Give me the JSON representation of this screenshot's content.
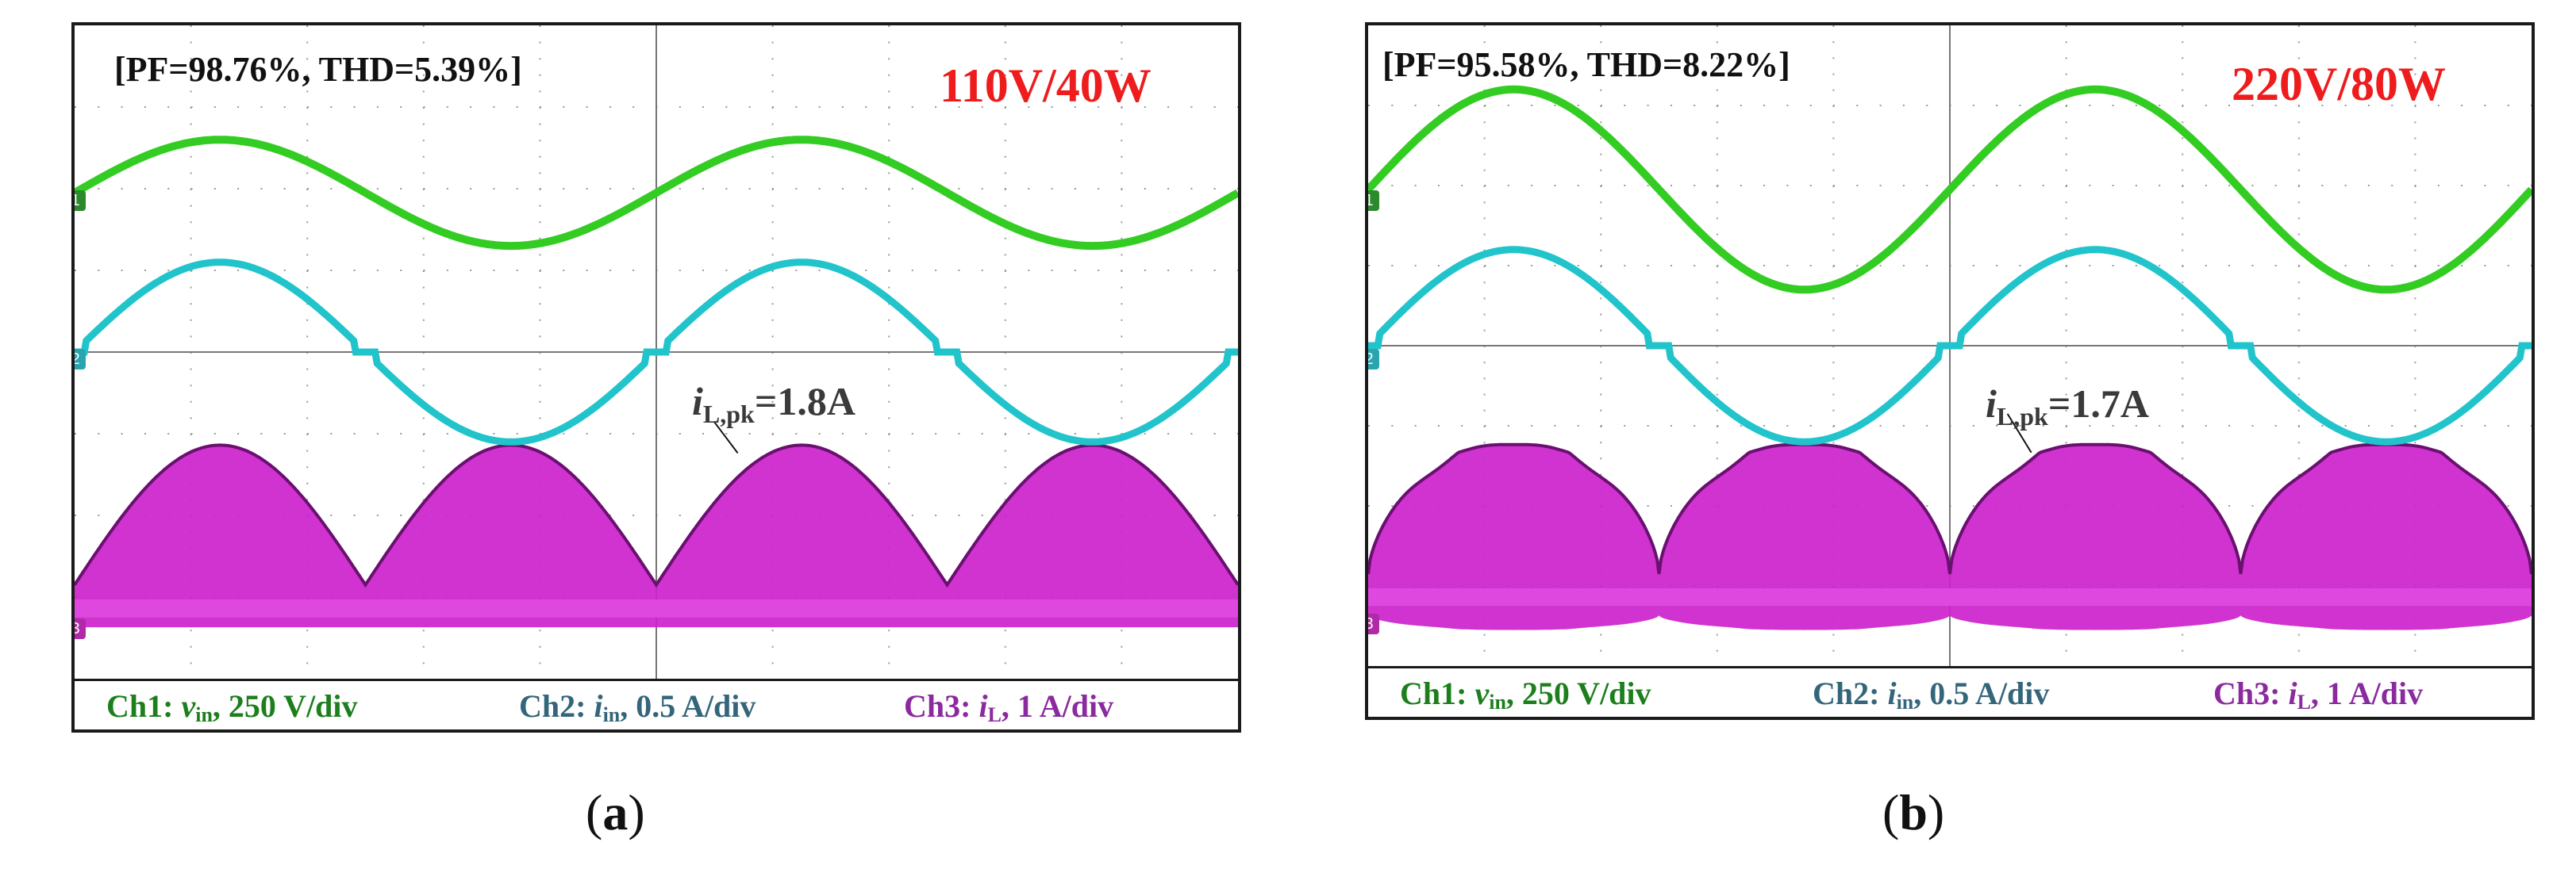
{
  "panels": [
    {
      "caption_open": "(",
      "caption_letter": "a",
      "caption_close": ")",
      "measurement": "[PF=98.76%, THD=5.39%]",
      "condition": "110V/40W",
      "peak_label": {
        "i": "i",
        "sub": "L,pk",
        "value": "=1.8A"
      }
    },
    {
      "caption_open": "(",
      "caption_letter": "b",
      "caption_close": ")",
      "measurement": "[PF=95.58%, THD=8.22%]",
      "condition": "220V/80W",
      "peak_label": {
        "i": "i",
        "sub": "L,pk",
        "value": "=1.7A"
      }
    }
  ],
  "legend": {
    "ch1": {
      "prefix": "Ch1: ",
      "sym": "v",
      "sub": "in",
      "suffix": ", 250 V/div"
    },
    "ch2": {
      "prefix": "Ch2: ",
      "sym": "i",
      "sub": "in",
      "suffix": ", 0.5 A/div"
    },
    "ch3": {
      "prefix": "Ch3: ",
      "sym": "i",
      "sub": "L",
      "suffix": ", 1 A/div"
    }
  },
  "markers": {
    "ch1": "1",
    "ch2": "2",
    "ch3": "3"
  },
  "colors": {
    "ch1": "#33cc22",
    "ch2": "#22c4cc",
    "ch3": "#cc22cc",
    "ch3_dark": "#6a1070",
    "grid": "#9a9a9a",
    "condition": "#ee1c1c"
  },
  "chart_data": [
    {
      "type": "line",
      "title": "110V/40W",
      "x_divisions": 10,
      "y_divisions": 8,
      "periods_shown": 2,
      "series": [
        {
          "name": "Ch1: v_in",
          "scale": "250 V/div",
          "amplitude_div": 0.65,
          "offset_div": 0.0,
          "phase": 0.0
        },
        {
          "name": "Ch2: i_in",
          "scale": "0.5 A/div",
          "amplitude_div": 1.1,
          "offset_div": 0.0,
          "phase": 0.0
        },
        {
          "name": "Ch3: i_L",
          "scale": "1 A/div",
          "peak_A": 1.8,
          "envelope": "rectified-sine"
        }
      ]
    },
    {
      "type": "line",
      "title": "220V/80W",
      "x_divisions": 10,
      "y_divisions": 8,
      "periods_shown": 2,
      "series": [
        {
          "name": "Ch1: v_in",
          "scale": "250 V/div",
          "amplitude_div": 1.25,
          "offset_div": 0.0,
          "phase": 0.0
        },
        {
          "name": "Ch2: i_in",
          "scale": "0.5 A/div",
          "amplitude_div": 1.2,
          "offset_div": 0.0,
          "phase": 0.0
        },
        {
          "name": "Ch3: i_L",
          "scale": "1 A/div",
          "peak_A": 1.7,
          "envelope": "flat-top"
        }
      ]
    }
  ]
}
